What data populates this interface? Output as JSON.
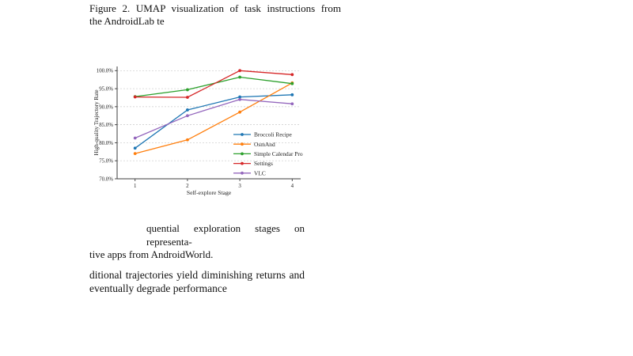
{
  "colors": {
    "background": "#ffffff",
    "text": "#111111",
    "grid": "#c9c9c9",
    "axis": "#3c3c3c"
  },
  "caption_top": {
    "line1": "Figure 2. UMAP visualization of task instructions from",
    "line2": "the AndroidLab te"
  },
  "caption_below": {
    "line1": "quential exploration stages on representa-",
    "line2": "tive apps from AndroidWorld."
  },
  "body_text": {
    "line1": "ditional trajectories yield diminishing returns and",
    "line2": "eventually degrade performance"
  },
  "chart_data": {
    "type": "line",
    "x": [
      1,
      2,
      3,
      4
    ],
    "xlabel": "Self-explore Stage",
    "ylabel": "High-quality Trajectory Rate",
    "ylim": [
      70,
      100
    ],
    "ytick_step": 5,
    "ytick_suffix": "%",
    "grid": "horizontal-dashed",
    "legend_position": "lower-right-inside",
    "series": [
      {
        "name": "Broccoli Recipe",
        "color": "#1f77b4",
        "values": [
          78.5,
          89.1,
          92.7,
          93.3
        ]
      },
      {
        "name": "OsmAnd",
        "color": "#ff7f0e",
        "values": [
          77.0,
          80.8,
          88.5,
          96.6
        ]
      },
      {
        "name": "Simple Calendar Pro",
        "color": "#2ca02c",
        "values": [
          92.8,
          94.7,
          98.2,
          96.4
        ]
      },
      {
        "name": "Settings",
        "color": "#d62728",
        "values": [
          92.7,
          92.6,
          100.0,
          98.9
        ]
      },
      {
        "name": "VLC",
        "color": "#9467bd",
        "values": [
          81.3,
          87.5,
          92.0,
          90.8
        ]
      }
    ]
  }
}
